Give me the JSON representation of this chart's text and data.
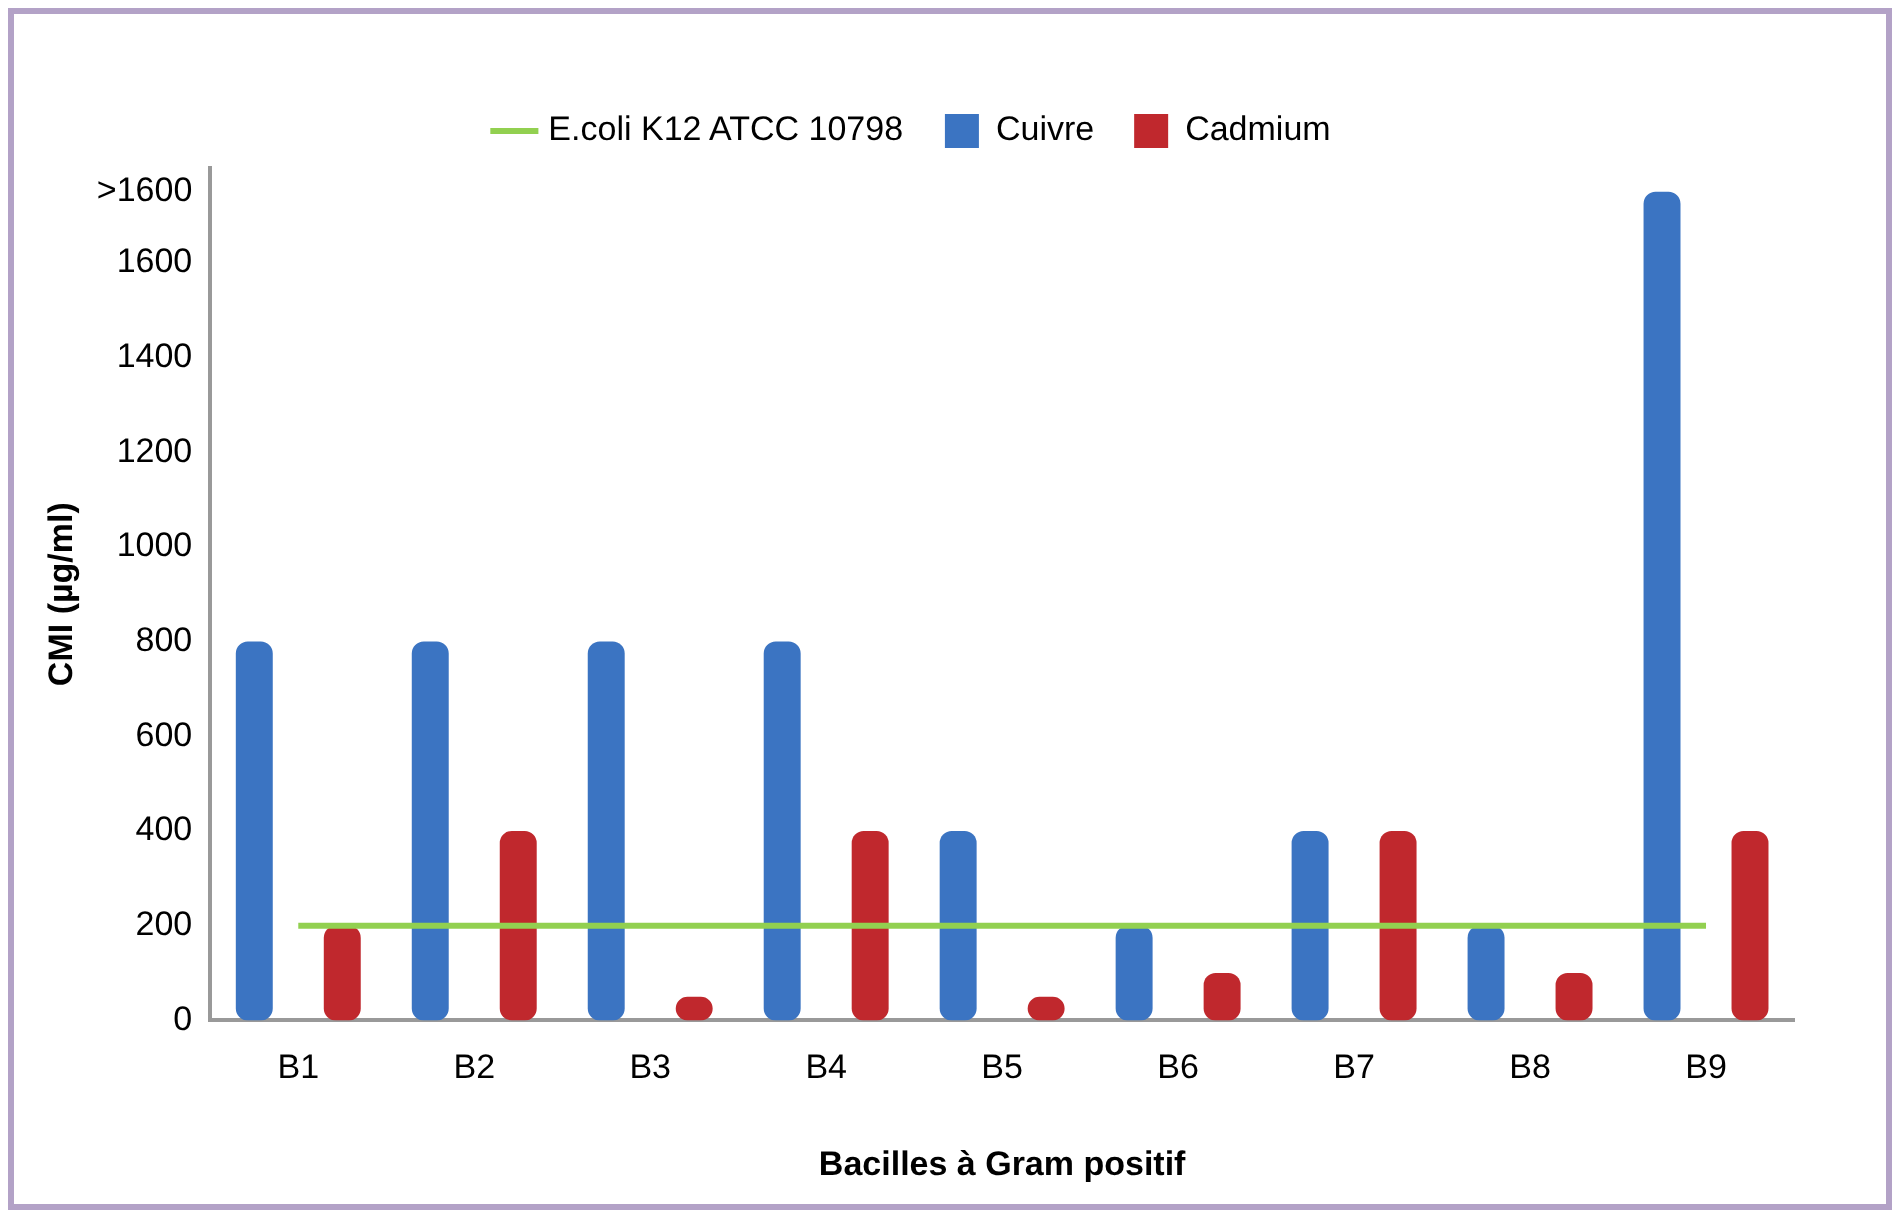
{
  "chart_data": {
    "type": "bar",
    "xlabel": "Bacilles à Gram positif",
    "ylabel": "CMI (µg/ml)",
    "categories": [
      "B1",
      "B2",
      "B3",
      "B4",
      "B5",
      "B6",
      "B7",
      "B8",
      "B9"
    ],
    "series": [
      {
        "name": "E.coli K12 ATCC 10798",
        "type": "line",
        "color": "#92d050",
        "values": [
          200,
          200,
          200,
          200,
          200,
          200,
          200,
          200,
          200
        ]
      },
      {
        "name": "Cuivre",
        "color": "#3b74c2",
        "values": [
          800,
          800,
          800,
          800,
          400,
          200,
          400,
          200,
          1750
        ]
      },
      {
        "name": "Cadmium",
        "color": "#c0282d",
        "values": [
          200,
          400,
          50,
          400,
          50,
          100,
          400,
          100,
          400
        ]
      }
    ],
    "ylim": [
      0,
      1800
    ],
    "yticks": [
      0,
      200,
      400,
      600,
      800,
      1000,
      1200,
      1400,
      1600,
      {
        "value": 1750,
        "label": ">1600"
      }
    ],
    "grid": false,
    "legend": "top",
    "marker": "none"
  }
}
